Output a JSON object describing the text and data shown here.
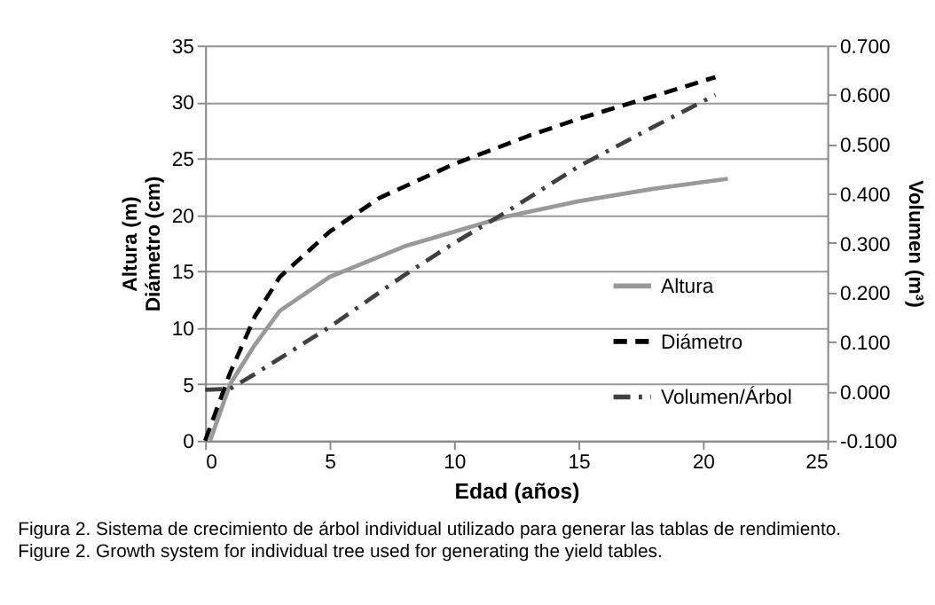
{
  "chart_data": {
    "type": "line",
    "xlabel": "Edad (años)",
    "ylabel": "Altura (m)\nDiámetro (cm)",
    "y2label": "Volumen (m³)",
    "annotations": [
      "Figura 2. Sistema de crecimiento de árbol individual utilizado para generar las tablas de rendimiento.",
      "Figure 2. Growth system for individual tree used for generating the yield tables."
    ],
    "series": [
      {
        "name": "Altura",
        "color": "#999999",
        "line_style": "solid",
        "x": [
          0.2,
          1,
          2,
          3,
          5,
          8,
          10,
          12,
          15,
          18,
          21
        ],
        "values": [
          0,
          5,
          8.5,
          11.5,
          14.5,
          17.2,
          18.5,
          19.8,
          21.2,
          22.3,
          23.2
        ]
      },
      {
        "name": "Diámetro",
        "color": "#000000",
        "line_style": "dashed",
        "x": [
          0,
          1,
          2,
          3,
          5,
          7,
          10,
          13,
          15,
          18,
          20.5
        ],
        "values": [
          0,
          6,
          11,
          14.5,
          18.5,
          21.5,
          24.5,
          27,
          28.5,
          30.5,
          32.2
        ]
      },
      {
        "name": "Volumen/Árbol",
        "color": "#404040",
        "line_style": "dashdot",
        "axis": "y2",
        "x": [
          0,
          1,
          2,
          5,
          8,
          10,
          12,
          15,
          18,
          20.5
        ],
        "values": [
          0.003,
          0.005,
          0.035,
          0.13,
          0.235,
          0.3,
          0.36,
          0.455,
          0.535,
          0.6
        ]
      }
    ],
    "xlim": [
      0,
      25
    ],
    "xticks": [
      0,
      5,
      10,
      15,
      20,
      25
    ],
    "ylim": [
      0,
      35
    ],
    "yticks": [
      0,
      5,
      10,
      15,
      20,
      25,
      30,
      35
    ],
    "y2lim": [
      -0.1,
      0.7
    ],
    "y2ticks": [
      {
        "value": -0.1,
        "label": "-0.100"
      },
      {
        "value": 0,
        "label": "0.000"
      },
      {
        "value": 0.1,
        "label": "0.100"
      },
      {
        "value": 0.2,
        "label": "0.200"
      },
      {
        "value": 0.3,
        "label": "0.300"
      },
      {
        "value": 0.4,
        "label": "0.400"
      },
      {
        "value": 0.5,
        "label": "0.500"
      },
      {
        "value": 0.6,
        "label": "0.600"
      },
      {
        "value": 0.7,
        "label": "0.700"
      }
    ],
    "grid": "y",
    "legend": "bottom right",
    "marker": "none"
  }
}
